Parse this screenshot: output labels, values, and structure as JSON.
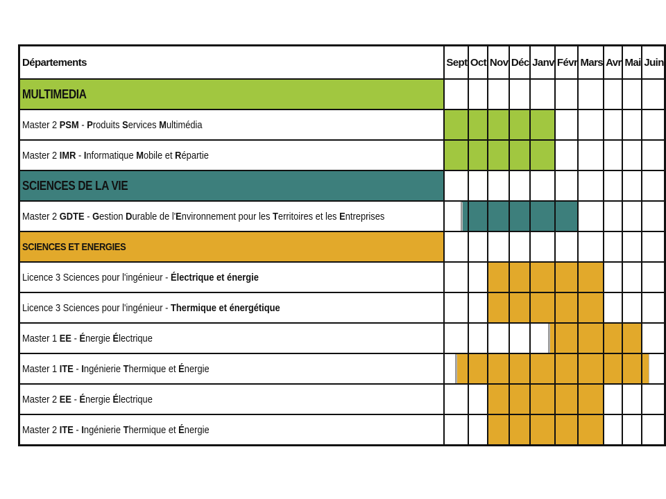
{
  "header": {
    "label": "Départements"
  },
  "months": [
    "Sept",
    "Oct",
    "Nov",
    "Déc",
    "Janv",
    "Févr",
    "Mars",
    "Avr",
    "Mai",
    "Juin"
  ],
  "colors": {
    "multimedia": "#a1c740",
    "sciences_vie": "#3d7f7c",
    "sciences_energies": "#e2a92b"
  },
  "rows": [
    {
      "type": "category",
      "label": "MULTIMEDIA",
      "color": "#a1c740",
      "active": []
    },
    {
      "type": "program",
      "parts": [
        {
          "t": "Master 2 "
        },
        {
          "t": "PSM",
          "b": true
        },
        {
          "t": " - "
        },
        {
          "t": "P",
          "b": true
        },
        {
          "t": "roduits "
        },
        {
          "t": "S",
          "b": true
        },
        {
          "t": "ervices "
        },
        {
          "t": "M",
          "b": true
        },
        {
          "t": "ultimédia"
        }
      ],
      "color": "#a1c740",
      "active": [
        "Sept",
        "Oct",
        "Nov",
        "Déc",
        "Janv"
      ]
    },
    {
      "type": "program",
      "parts": [
        {
          "t": "Master 2 "
        },
        {
          "t": "IMR",
          "b": true
        },
        {
          "t": " - "
        },
        {
          "t": "I",
          "b": true
        },
        {
          "t": "nformatique "
        },
        {
          "t": "M",
          "b": true
        },
        {
          "t": "obile et "
        },
        {
          "t": "R",
          "b": true
        },
        {
          "t": "épartie"
        }
      ],
      "color": "#a1c740",
      "active": [
        "Sept",
        "Oct",
        "Nov",
        "Déc",
        "Janv"
      ]
    },
    {
      "type": "category",
      "label": "SCIENCES DE LA VIE",
      "color": "#3d7f7c",
      "active": []
    },
    {
      "type": "program",
      "parts": [
        {
          "t": "Master 2 "
        },
        {
          "t": "GDTE",
          "b": true
        },
        {
          "t": " - "
        },
        {
          "t": "G",
          "b": true
        },
        {
          "t": "estion "
        },
        {
          "t": "D",
          "b": true
        },
        {
          "t": "urable de l'"
        },
        {
          "t": "E",
          "b": true
        },
        {
          "t": "nvironnement pour les "
        },
        {
          "t": "T",
          "b": true
        },
        {
          "t": "erritoires et les "
        },
        {
          "t": "E",
          "b": true
        },
        {
          "t": "ntreprises"
        }
      ],
      "color": "#3d7f7c",
      "active": [
        "Sept",
        "Oct",
        "Nov",
        "Déc",
        "Janv",
        "Févr"
      ],
      "partial_start": {
        "month": "Sept",
        "blank_fraction": 0.7
      }
    },
    {
      "type": "category",
      "small": true,
      "label": "SCIENCES ET ENERGIES",
      "color": "#e2a92b",
      "active": []
    },
    {
      "type": "program",
      "parts": [
        {
          "t": "Licence 3 Sciences pour l'ingénieur - "
        },
        {
          "t": "Électrique et énergie",
          "b": true
        }
      ],
      "color": "#e2a92b",
      "active": [
        "Nov",
        "Déc",
        "Janv",
        "Févr",
        "Mars"
      ]
    },
    {
      "type": "program",
      "parts": [
        {
          "t": "Licence 3 Sciences pour l'ingénieur - "
        },
        {
          "t": "Thermique et énergétique",
          "b": true
        }
      ],
      "color": "#e2a92b",
      "active": [
        "Nov",
        "Déc",
        "Janv",
        "Févr",
        "Mars"
      ]
    },
    {
      "type": "program",
      "parts": [
        {
          "t": "Master 1 "
        },
        {
          "t": "EE",
          "b": true
        },
        {
          "t": " - "
        },
        {
          "t": "É",
          "b": true
        },
        {
          "t": "nergie "
        },
        {
          "t": "É",
          "b": true
        },
        {
          "t": "lectrique"
        }
      ],
      "color": "#e2a92b",
      "active": [
        "Janv",
        "Févr",
        "Mars",
        "Avr",
        "Mai"
      ],
      "partial_start": {
        "month": "Janv",
        "blank_fraction": 0.75
      }
    },
    {
      "type": "program",
      "parts": [
        {
          "t": "Master 1 "
        },
        {
          "t": "ITE",
          "b": true
        },
        {
          "t": " - "
        },
        {
          "t": "I",
          "b": true
        },
        {
          "t": "ngénierie "
        },
        {
          "t": "T",
          "b": true
        },
        {
          "t": "hermique et "
        },
        {
          "t": "É",
          "b": true
        },
        {
          "t": "nergie"
        }
      ],
      "color": "#e2a92b",
      "active": [
        "Sept",
        "Oct",
        "Nov",
        "Déc",
        "Janv",
        "Févr",
        "Mars",
        "Avr",
        "Mai",
        "Juin"
      ],
      "partial_start": {
        "month": "Sept",
        "blank_fraction": 0.45
      },
      "partial_end": {
        "month": "Juin",
        "blank_fraction": 0.7
      }
    },
    {
      "type": "program",
      "parts": [
        {
          "t": "Master 2 "
        },
        {
          "t": "EE",
          "b": true
        },
        {
          "t": " - "
        },
        {
          "t": "É",
          "b": true
        },
        {
          "t": "nergie "
        },
        {
          "t": "É",
          "b": true
        },
        {
          "t": "lectrique"
        }
      ],
      "color": "#e2a92b",
      "active": [
        "Nov",
        "Déc",
        "Janv",
        "Févr",
        "Mars"
      ]
    },
    {
      "type": "program",
      "parts": [
        {
          "t": "Master 2 "
        },
        {
          "t": "ITE",
          "b": true
        },
        {
          "t": " - "
        },
        {
          "t": "I",
          "b": true
        },
        {
          "t": "ngénierie "
        },
        {
          "t": "T",
          "b": true
        },
        {
          "t": "hermique et "
        },
        {
          "t": "É",
          "b": true
        },
        {
          "t": "nergie"
        }
      ],
      "color": "#e2a92b",
      "active": [
        "Nov",
        "Déc",
        "Janv",
        "Févr",
        "Mars"
      ]
    }
  ]
}
